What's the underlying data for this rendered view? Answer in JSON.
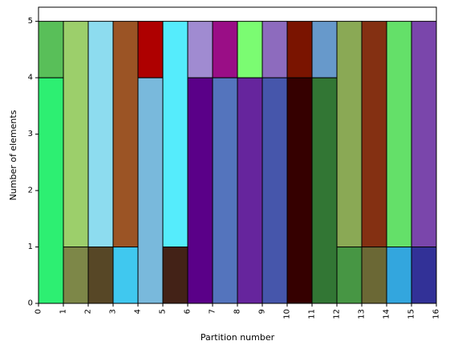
{
  "chart_data": {
    "type": "bar",
    "subtype": "stacked",
    "xlabel": "Partition number",
    "ylabel": "Number of elements",
    "xlim": [
      0,
      16
    ],
    "ylim": [
      0,
      5.25
    ],
    "x_ticks": [
      "0",
      "1",
      "2",
      "3",
      "4",
      "5",
      "6",
      "7",
      "8",
      "9",
      "10",
      "11",
      "12",
      "13",
      "14",
      "15",
      "16"
    ],
    "y_ticks": [
      "0",
      "1",
      "2",
      "3",
      "4",
      "5"
    ],
    "grid": false,
    "segments": [
      {
        "x0": 0,
        "x1": 1,
        "y0": 0,
        "y1": 4,
        "color": "#2def72"
      },
      {
        "x0": 0,
        "x1": 1,
        "y0": 4,
        "y1": 5,
        "color": "#59bf59"
      },
      {
        "x0": 1,
        "x1": 2,
        "y0": 0,
        "y1": 1,
        "color": "#7d8748"
      },
      {
        "x0": 1,
        "x1": 2,
        "y0": 1,
        "y1": 5,
        "color": "#9ccf6b"
      },
      {
        "x0": 2,
        "x1": 3,
        "y0": 0,
        "y1": 1,
        "color": "#574726"
      },
      {
        "x0": 2,
        "x1": 3,
        "y0": 1,
        "y1": 5,
        "color": "#8ddcef"
      },
      {
        "x0": 3,
        "x1": 4,
        "y0": 0,
        "y1": 1,
        "color": "#40c8ef"
      },
      {
        "x0": 3,
        "x1": 4,
        "y0": 1,
        "y1": 5,
        "color": "#9b5425"
      },
      {
        "x0": 4,
        "x1": 5,
        "y0": 0,
        "y1": 4,
        "color": "#79b9dc"
      },
      {
        "x0": 4,
        "x1": 5,
        "y0": 4,
        "y1": 5,
        "color": "#ae0000"
      },
      {
        "x0": 5,
        "x1": 6,
        "y0": 0,
        "y1": 1,
        "color": "#432217"
      },
      {
        "x0": 5,
        "x1": 6,
        "y0": 1,
        "y1": 5,
        "color": "#55ecfc"
      },
      {
        "x0": 6,
        "x1": 7,
        "y0": 0,
        "y1": 4,
        "color": "#5a0088"
      },
      {
        "x0": 6,
        "x1": 7,
        "y0": 4,
        "y1": 5,
        "color": "#a08bd1"
      },
      {
        "x0": 7,
        "x1": 8,
        "y0": 0,
        "y1": 4,
        "color": "#5474bd"
      },
      {
        "x0": 8,
        "x1": 9,
        "y0": 0,
        "y1": 4,
        "color": "#66259d"
      },
      {
        "x0": 7,
        "x1": 8,
        "y0": 4,
        "y1": 5,
        "color": "#9a0e86"
      },
      {
        "x0": 8,
        "x1": 9,
        "y0": 4,
        "y1": 5,
        "color": "#7bfc72"
      },
      {
        "x0": 9,
        "x1": 10,
        "y0": 0,
        "y1": 4,
        "color": "#4656ab"
      },
      {
        "x0": 9,
        "x1": 10,
        "y0": 4,
        "y1": 5,
        "color": "#8d6bbe"
      },
      {
        "x0": 10,
        "x1": 11,
        "y0": 0,
        "y1": 4,
        "color": "#350000"
      },
      {
        "x0": 10,
        "x1": 11,
        "y0": 4,
        "y1": 5,
        "color": "#7a1400"
      },
      {
        "x0": 11,
        "x1": 12,
        "y0": 0,
        "y1": 4,
        "color": "#327634"
      },
      {
        "x0": 11,
        "x1": 12,
        "y0": 4,
        "y1": 5,
        "color": "#6799cb"
      },
      {
        "x0": 12,
        "x1": 13,
        "y0": 0,
        "y1": 1,
        "color": "#479644"
      },
      {
        "x0": 12,
        "x1": 13,
        "y0": 1,
        "y1": 5,
        "color": "#8aa955"
      },
      {
        "x0": 13,
        "x1": 14,
        "y0": 0,
        "y1": 1,
        "color": "#6b6835"
      },
      {
        "x0": 13,
        "x1": 14,
        "y0": 1,
        "y1": 5,
        "color": "#843012"
      },
      {
        "x0": 14,
        "x1": 15,
        "y0": 0,
        "y1": 1,
        "color": "#33a6de"
      },
      {
        "x0": 14,
        "x1": 15,
        "y0": 1,
        "y1": 5,
        "color": "#64e069"
      },
      {
        "x0": 15,
        "x1": 16,
        "y0": 0,
        "y1": 1,
        "color": "#323197"
      },
      {
        "x0": 15,
        "x1": 16,
        "y0": 1,
        "y1": 5,
        "color": "#7a46ab"
      }
    ]
  }
}
